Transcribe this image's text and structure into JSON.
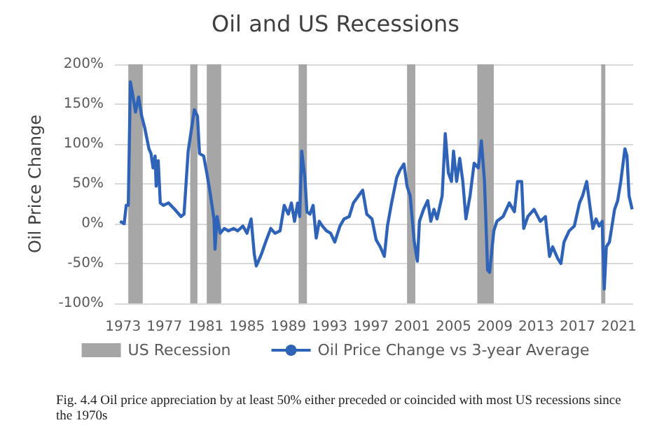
{
  "chart_data": {
    "type": "line",
    "title": "Oil and US Recessions",
    "ylabel": "Oil Price Change",
    "x": [
      1972.7,
      1973.1,
      1973.3,
      1973.5,
      1973.7,
      1973.9,
      1974.2,
      1974.5,
      1974.8,
      1975.1,
      1975.5,
      1975.7,
      1975.9,
      1976.1,
      1976.2,
      1976.4,
      1976.6,
      1976.9,
      1977.4,
      1978.0,
      1978.6,
      1978.9,
      1979.3,
      1979.6,
      1979.9,
      1980.2,
      1980.4,
      1980.8,
      1981.1,
      1981.4,
      1981.8,
      1981.9,
      1982.1,
      1982.4,
      1982.8,
      1983.2,
      1983.7,
      1984.1,
      1984.6,
      1985.0,
      1985.4,
      1985.7,
      1985.9,
      1986.4,
      1986.8,
      1987.3,
      1987.7,
      1988.2,
      1988.6,
      1989.0,
      1989.3,
      1989.6,
      1989.9,
      1990.1,
      1990.3,
      1990.6,
      1990.8,
      1991.1,
      1991.4,
      1991.7,
      1992.0,
      1992.3,
      1992.7,
      1993.1,
      1993.5,
      1994.0,
      1994.4,
      1994.9,
      1995.3,
      1995.8,
      1996.2,
      1996.6,
      1997.1,
      1997.5,
      1997.9,
      1998.3,
      1998.6,
      1999.0,
      1999.5,
      1999.8,
      2000.2,
      2000.5,
      2000.8,
      2001.2,
      2001.5,
      2001.7,
      2002.1,
      2002.5,
      2002.8,
      2003.1,
      2003.4,
      2003.9,
      2004.2,
      2004.5,
      2004.8,
      2005.0,
      2005.3,
      2005.6,
      2005.9,
      2006.2,
      2006.6,
      2007.0,
      2007.4,
      2007.7,
      2008.0,
      2008.3,
      2008.5,
      2008.9,
      2009.2,
      2009.8,
      2010.4,
      2010.9,
      2011.2,
      2011.6,
      2011.8,
      2012.2,
      2012.8,
      2013.4,
      2013.9,
      2014.3,
      2014.6,
      2015.1,
      2015.4,
      2015.7,
      2016.2,
      2016.7,
      2017.2,
      2017.5,
      2017.9,
      2018.2,
      2018.5,
      2018.8,
      2019.1,
      2019.4,
      2019.6,
      2019.8,
      2020.1,
      2020.6,
      2020.9,
      2021.2,
      2021.6,
      2021.8,
      2022.0,
      2022.3
    ],
    "series": [
      {
        "name": "Oil Price Change vs 3-year Average",
        "color": "#2e63b8",
        "values": [
          3,
          0,
          23,
          23,
          178,
          164,
          140,
          159,
          135,
          120,
          94,
          88,
          70,
          85,
          47,
          79,
          26,
          23,
          26,
          18,
          9,
          12,
          91,
          117,
          143,
          135,
          88,
          85,
          64,
          41,
          6,
          -32,
          9,
          -12,
          -6,
          -9,
          -6,
          -9,
          -3,
          -12,
          6,
          -38,
          -53,
          -38,
          -23,
          -6,
          -12,
          -9,
          23,
          12,
          26,
          3,
          26,
          9,
          91,
          58,
          15,
          12,
          23,
          -18,
          3,
          -3,
          -9,
          -12,
          -23,
          -3,
          6,
          9,
          26,
          35,
          42,
          12,
          6,
          -20,
          -29,
          -41,
          -3,
          26,
          58,
          67,
          75,
          47,
          35,
          -23,
          -47,
          3,
          18,
          29,
          3,
          18,
          6,
          35,
          113,
          64,
          53,
          91,
          53,
          82,
          53,
          6,
          35,
          76,
          70,
          104,
          53,
          -58,
          -61,
          -9,
          3,
          9,
          26,
          15,
          53,
          53,
          -6,
          9,
          18,
          3,
          9,
          -41,
          -29,
          -44,
          -50,
          -23,
          -9,
          -3,
          26,
          35,
          53,
          23,
          -6,
          6,
          -3,
          3,
          -82,
          -29,
          -23,
          18,
          29,
          53,
          94,
          85,
          35,
          18
        ]
      }
    ],
    "bands": [
      {
        "axis": "x",
        "from": 1973.5,
        "to": 1974.9,
        "label": "US Recession",
        "color": "#a6a6a6"
      },
      {
        "axis": "x",
        "from": 1979.5,
        "to": 1980.2,
        "color": "#a6a6a6"
      },
      {
        "axis": "x",
        "from": 1981.1,
        "to": 1982.5,
        "color": "#a6a6a6"
      },
      {
        "axis": "x",
        "from": 1990.0,
        "to": 1990.8,
        "color": "#a6a6a6"
      },
      {
        "axis": "x",
        "from": 2000.5,
        "to": 2001.3,
        "color": "#a6a6a6"
      },
      {
        "axis": "x",
        "from": 2007.3,
        "to": 2008.9,
        "color": "#a6a6a6"
      },
      {
        "axis": "x",
        "from": 2019.3,
        "to": 2019.7,
        "color": "#a6a6a6"
      }
    ],
    "xlim": [
      1972.2,
      2022.4
    ],
    "xticks": [
      1973,
      1977,
      1981,
      1985,
      1989,
      1993,
      1997,
      2001,
      2005,
      2009,
      2013,
      2017,
      2021
    ],
    "ylim": [
      -100,
      200
    ],
    "yticks": [
      {
        "value": -100,
        "label": "-100%"
      },
      {
        "value": -50,
        "label": "-50%"
      },
      {
        "value": 0,
        "label": "0%"
      },
      {
        "value": 50,
        "label": "50%"
      },
      {
        "value": 100,
        "label": "100%"
      },
      {
        "value": 150,
        "label": "150%"
      },
      {
        "value": 200,
        "label": "200%"
      }
    ],
    "grid": "y",
    "legend": "bottom",
    "marker": "none",
    "line_style": "solid",
    "annotations": [
      "Fig. 4.4 Oil price appreciation by at least 50% either preceded or coincided with most US recessions since the 1970s"
    ]
  }
}
